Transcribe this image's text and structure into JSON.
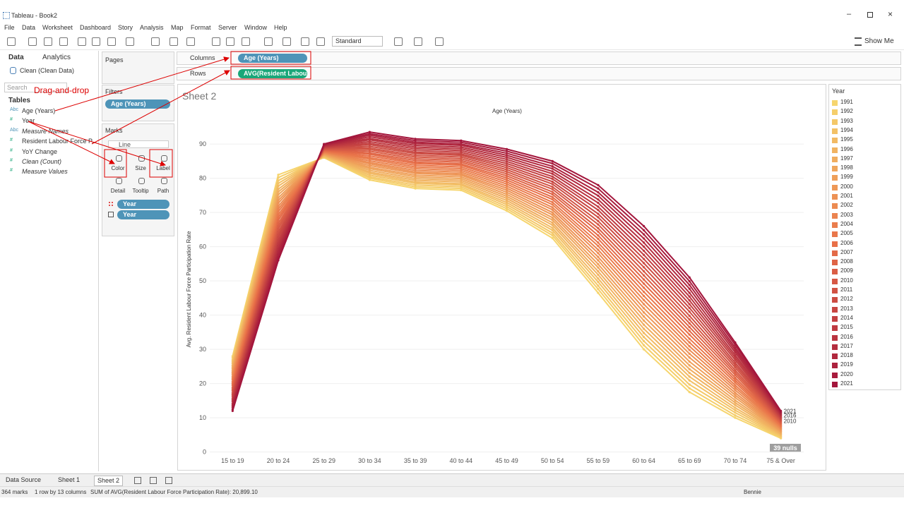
{
  "window": {
    "title": "Tableau - Book2"
  },
  "menu": [
    "File",
    "Data",
    "Worksheet",
    "Dashboard",
    "Story",
    "Analysis",
    "Map",
    "Format",
    "Server",
    "Window",
    "Help"
  ],
  "toolbar": {
    "presentation": "Standard",
    "show_me": "Show Me"
  },
  "data_pane": {
    "tabs": [
      "Data",
      "Analytics"
    ],
    "source": "Clean (Clean Data)",
    "search": "Search",
    "tables": "Tables",
    "fields": [
      {
        "icon": "Abc",
        "name": "Age (Years)"
      },
      {
        "icon": "#",
        "name": "Year"
      },
      {
        "icon": "Abc",
        "name": "Measure Names",
        "italic": true
      },
      {
        "icon": "#",
        "name": "Resident Labour Force P..."
      },
      {
        "icon": "#",
        "name": "YoY Change"
      },
      {
        "icon": "#",
        "name": "Clean (Count)",
        "italic": true
      },
      {
        "icon": "#",
        "name": "Measure Values",
        "italic": true
      }
    ]
  },
  "pages": {
    "title": "Pages"
  },
  "filters": {
    "title": "Filters",
    "pills": [
      "Age (Years)"
    ]
  },
  "marks": {
    "title": "Marks",
    "mark_type": "Line",
    "buttons": [
      "Color",
      "Size",
      "Label",
      "Detail",
      "Tooltip",
      "Path"
    ],
    "pills": [
      "Year",
      "Year"
    ]
  },
  "shelves": {
    "columns": {
      "label": "Columns",
      "pill": "Age (Years)"
    },
    "rows": {
      "label": "Rows",
      "pill": "AVG(Resident Labou.."
    }
  },
  "sheet_title": "Sheet 2",
  "annotation": "Drag-and-drop",
  "chart_data": {
    "type": "line",
    "x_label": "Age (Years)",
    "y_label": "Avg. Resident Labour Force Participation Rate",
    "legend_title": "Year",
    "null_indicator": "39 nulls",
    "categories": [
      "15 to 19",
      "20 to 24",
      "25 to 29",
      "30 to 34",
      "35 to 39",
      "40 to 44",
      "45 to 49",
      "50 to 54",
      "55 to 59",
      "60 to 64",
      "65 to 69",
      "70 to 74",
      "75 & Over"
    ],
    "ylim": [
      -4,
      96
    ],
    "yticks": [
      0,
      10,
      20,
      30,
      40,
      50,
      60,
      70,
      80,
      90
    ],
    "grid": true,
    "series": [
      {
        "name": "1991",
        "color": "#f6d56e",
        "values": [
          28,
          81,
          86,
          79.5,
          77,
          76.5,
          70.5,
          62.5,
          46.5,
          30,
          17.5,
          10,
          4
        ]
      },
      {
        "name": "1992",
        "color": "#f5ce6b",
        "values": [
          27.5,
          80.2,
          86.1,
          80.0,
          77.5,
          77.0,
          71.1,
          63.3,
          47.6,
          31.2,
          18.6,
          10.7,
          4.3
        ]
      },
      {
        "name": "1993",
        "color": "#f4c869",
        "values": [
          26.9,
          79.3,
          86.3,
          80.4,
          78.0,
          77.5,
          71.7,
          64.0,
          48.6,
          32.4,
          19.7,
          11.5,
          4.5
        ]
      },
      {
        "name": "1994",
        "color": "#f3c166",
        "values": [
          26.4,
          78.5,
          86.4,
          80.9,
          78.5,
          78.0,
          72.3,
          64.8,
          49.7,
          33.6,
          20.9,
          12.2,
          4.8
        ]
      },
      {
        "name": "1995",
        "color": "#f2ba64",
        "values": [
          25.9,
          77.7,
          86.5,
          81.4,
          78.9,
          78.4,
          72.9,
          65.5,
          50.7,
          34.8,
          22.0,
          12.9,
          5.1
        ]
      },
      {
        "name": "1996",
        "color": "#f1b361",
        "values": [
          25.3,
          76.8,
          86.7,
          81.8,
          79.4,
          78.9,
          73.5,
          66.3,
          51.8,
          36.0,
          23.1,
          13.7,
          5.3
        ]
      },
      {
        "name": "1997",
        "color": "#f0ad5f",
        "values": [
          24.8,
          76.0,
          86.8,
          82.3,
          79.9,
          79.4,
          74.1,
          67.0,
          52.8,
          37.2,
          24.2,
          14.4,
          5.6
        ]
      },
      {
        "name": "1998",
        "color": "#efa65c",
        "values": [
          24.3,
          75.2,
          86.9,
          82.8,
          80.4,
          79.9,
          74.7,
          67.8,
          53.9,
          38.4,
          25.3,
          15.1,
          5.9
        ]
      },
      {
        "name": "1999",
        "color": "#ef9f5a",
        "values": [
          23.7,
          74.3,
          87.1,
          83.2,
          80.9,
          80.4,
          75.3,
          68.5,
          54.9,
          39.6,
          26.4,
          15.9,
          6.1
        ]
      },
      {
        "name": "2000",
        "color": "#ee9857",
        "values": [
          23.2,
          73.5,
          87.2,
          83.7,
          81.4,
          80.9,
          75.9,
          69.3,
          56.0,
          40.8,
          27.6,
          16.6,
          6.4
        ]
      },
      {
        "name": "2001",
        "color": "#ed9255",
        "values": [
          22.7,
          72.7,
          87.3,
          84.2,
          81.8,
          81.3,
          76.5,
          70.0,
          57.0,
          42.0,
          28.7,
          17.3,
          6.7
        ]
      },
      {
        "name": "2002",
        "color": "#ec8b52",
        "values": [
          22.1,
          71.8,
          87.5,
          84.6,
          82.3,
          81.8,
          77.1,
          70.8,
          58.1,
          43.2,
          29.8,
          18.1,
          6.9
        ]
      },
      {
        "name": "2003",
        "color": "#eb8450",
        "values": [
          21.6,
          71.0,
          87.6,
          85.1,
          82.8,
          82.3,
          77.7,
          71.5,
          59.1,
          44.4,
          30.9,
          18.8,
          7.2
        ]
      },
      {
        "name": "2004",
        "color": "#ea7d4d",
        "values": [
          21.1,
          70.2,
          87.7,
          85.6,
          83.3,
          82.8,
          78.3,
          72.3,
          60.2,
          45.6,
          32.0,
          19.5,
          7.5
        ]
      },
      {
        "name": "2005",
        "color": "#e9774b",
        "values": [
          20.5,
          69.3,
          87.9,
          86.0,
          83.8,
          83.3,
          78.9,
          73.0,
          61.2,
          46.8,
          33.1,
          20.3,
          7.7
        ]
      },
      {
        "name": "2006",
        "color": "#e87048",
        "values": [
          20.0,
          68.5,
          88.0,
          86.5,
          84.3,
          83.8,
          79.5,
          73.8,
          62.3,
          48.0,
          34.3,
          21.0,
          8.0
        ]
      },
      {
        "name": "2007",
        "color": "#e36a47",
        "values": [
          19.5,
          67.7,
          88.1,
          87.0,
          84.7,
          84.2,
          80.1,
          74.5,
          63.3,
          49.2,
          35.4,
          21.7,
          8.3
        ]
      },
      {
        "name": "2008",
        "color": "#df6446",
        "values": [
          18.9,
          66.8,
          88.3,
          87.4,
          85.2,
          84.7,
          80.7,
          75.3,
          64.4,
          50.4,
          36.5,
          22.5,
          8.5
        ]
      },
      {
        "name": "2009",
        "color": "#da5e46",
        "values": [
          18.4,
          66.0,
          88.4,
          87.9,
          85.7,
          85.2,
          81.3,
          76.0,
          65.4,
          51.6,
          37.6,
          23.2,
          8.8
        ]
      },
      {
        "name": "2010",
        "color": "#d65845",
        "labeled": true,
        "values": [
          17.9,
          65.2,
          88.5,
          88.4,
          86.2,
          85.7,
          81.9,
          76.8,
          66.5,
          52.8,
          38.7,
          23.9,
          9.1
        ]
      },
      {
        "name": "2011",
        "color": "#d15244",
        "values": [
          17.3,
          64.3,
          88.7,
          88.8,
          86.7,
          86.2,
          82.5,
          77.5,
          67.5,
          54.0,
          39.8,
          24.7,
          9.3
        ]
      },
      {
        "name": "2012",
        "color": "#cc4c43",
        "values": [
          16.8,
          63.5,
          88.8,
          89.3,
          87.2,
          86.7,
          83.1,
          78.3,
          68.6,
          55.2,
          41.0,
          25.4,
          9.6
        ]
      },
      {
        "name": "2013",
        "color": "#c84642",
        "values": [
          16.3,
          62.7,
          88.9,
          89.8,
          87.6,
          87.1,
          83.7,
          79.0,
          69.6,
          56.4,
          42.1,
          26.1,
          9.9
        ]
      },
      {
        "name": "2014",
        "color": "#c34042",
        "values": [
          15.7,
          61.8,
          89.1,
          90.2,
          88.1,
          87.6,
          84.3,
          79.8,
          70.7,
          57.6,
          43.2,
          26.9,
          10.1
        ]
      },
      {
        "name": "2015",
        "color": "#bf3a41",
        "values": [
          15.2,
          61.0,
          89.2,
          90.7,
          88.6,
          88.1,
          84.9,
          80.5,
          71.7,
          58.8,
          44.3,
          27.6,
          10.4
        ]
      },
      {
        "name": "2016",
        "color": "#ba3440",
        "labeled": true,
        "values": [
          14.7,
          60.2,
          89.3,
          91.2,
          89.1,
          88.6,
          85.5,
          81.3,
          72.8,
          60.0,
          45.4,
          28.3,
          10.7
        ]
      },
      {
        "name": "2017",
        "color": "#b52e3f",
        "values": [
          14.1,
          59.3,
          89.5,
          91.6,
          89.6,
          89.1,
          86.1,
          82.0,
          73.8,
          61.2,
          46.5,
          29.1,
          10.9
        ]
      },
      {
        "name": "2018",
        "color": "#b1283e",
        "values": [
          13.6,
          58.5,
          89.6,
          92.1,
          90.1,
          89.6,
          86.7,
          82.8,
          74.9,
          62.4,
          47.7,
          29.8,
          11.2
        ]
      },
      {
        "name": "2019",
        "color": "#ac223e",
        "values": [
          13.1,
          57.7,
          89.7,
          92.6,
          90.5,
          90.0,
          87.3,
          83.5,
          75.9,
          63.6,
          48.8,
          30.5,
          11.5
        ]
      },
      {
        "name": "2020",
        "color": "#a81c3d",
        "values": [
          12.5,
          56.8,
          89.9,
          93.0,
          91.0,
          90.5,
          87.9,
          84.3,
          77.0,
          64.8,
          49.9,
          31.3,
          11.7
        ]
      },
      {
        "name": "2021",
        "color": "#a3163c",
        "labeled": true,
        "values": [
          12,
          56,
          90,
          93.5,
          91.5,
          91,
          88.5,
          85,
          78,
          66,
          51,
          32,
          12
        ]
      }
    ]
  },
  "tabs": [
    "Data Source",
    "Sheet 1",
    "Sheet 2"
  ],
  "status": {
    "marks": "364 marks",
    "shape": "1 row by 13 columns",
    "summary": "SUM of AVG(Resident Labour Force Participation Rate): 20,899.10",
    "user": "Bennie"
  }
}
